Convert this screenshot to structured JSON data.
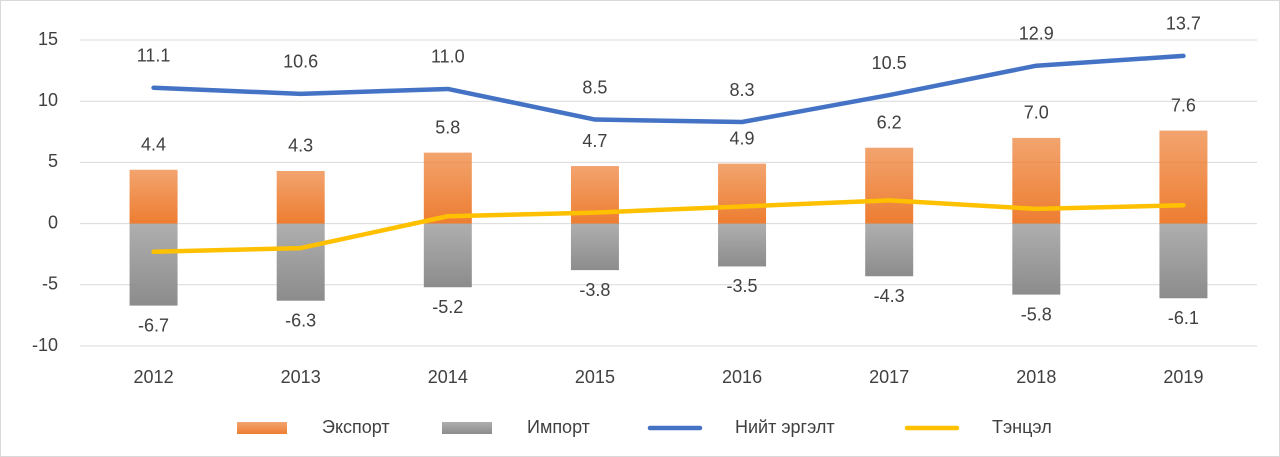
{
  "chart_data": {
    "type": "bar_line",
    "categories": [
      "2012",
      "2013",
      "2014",
      "2015",
      "2016",
      "2017",
      "2018",
      "2019"
    ],
    "series": [
      {
        "name": "Экспорт",
        "type": "bar",
        "color": "#ed7d31",
        "values": [
          4.4,
          4.3,
          5.8,
          4.7,
          4.9,
          6.2,
          7.0,
          7.6
        ],
        "value_labels": [
          "4.4",
          "4.3",
          "5.8",
          "4.7",
          "4.9",
          "6.2",
          "7.0",
          "7.6"
        ]
      },
      {
        "name": "Импорт",
        "type": "bar",
        "color": "#8c8c8c",
        "values": [
          -6.7,
          -6.3,
          -5.2,
          -3.8,
          -3.5,
          -4.3,
          -5.8,
          -6.1
        ],
        "value_labels": [
          "-6.7",
          "-6.3",
          "-5.2",
          "-3.8",
          "-3.5",
          "-4.3",
          "-5.8",
          "-6.1"
        ]
      },
      {
        "name": "Нийт эргэлт",
        "type": "line",
        "color": "#4472c4",
        "values": [
          11.1,
          10.6,
          11.0,
          8.5,
          8.3,
          10.5,
          12.9,
          13.7
        ],
        "value_labels": [
          "11.1",
          "10.6",
          "11.0",
          "8.5",
          "8.3",
          "10.5",
          "12.9",
          "13.7"
        ]
      },
      {
        "name": "Тэнцэл",
        "type": "line",
        "color": "#ffc000",
        "values": [
          -2.3,
          -2.0,
          0.6,
          0.9,
          1.4,
          1.9,
          1.2,
          1.5
        ]
      }
    ],
    "ylim": [
      -10,
      15
    ],
    "yticks": [
      -10,
      -5,
      0,
      5,
      10,
      15
    ],
    "grid": true,
    "legend": "bottom"
  }
}
